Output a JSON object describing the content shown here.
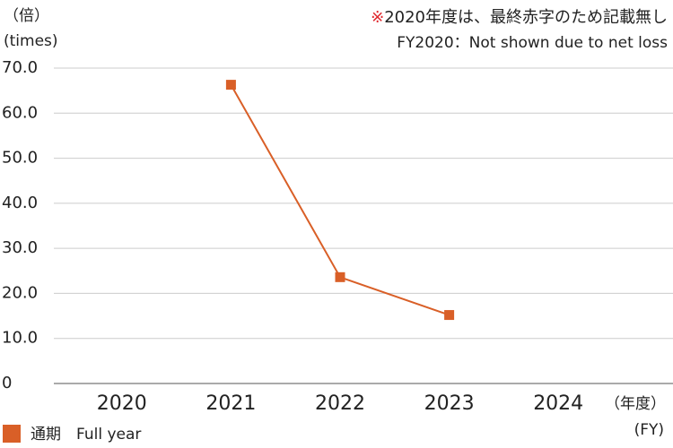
{
  "chart_data": {
    "type": "line",
    "y_unit_ja": "（倍）",
    "y_unit_en": "(times)",
    "note_mark": "※",
    "note_mark_color": "#e0282e",
    "note_ja": "2020年度は、最終赤字のため記載無し",
    "note_en": "FY2020：Not shown due to net loss",
    "x_unit_ja": "（年度）",
    "x_unit_en": "(FY)",
    "categories": [
      "2020",
      "2021",
      "2022",
      "2023",
      "2024"
    ],
    "series": [
      {
        "name": "通期　Full year",
        "color": "#d95f27",
        "values": [
          null,
          66.3,
          23.6,
          15.2,
          null
        ]
      }
    ],
    "ylim": [
      0,
      70
    ],
    "yticks": [
      0,
      {
        "value": 10,
        "label": "10.0"
      },
      {
        "value": 20,
        "label": "20.0"
      },
      {
        "value": 30,
        "label": "30.0"
      },
      {
        "value": 40,
        "label": "40.0"
      },
      {
        "value": 50,
        "label": "50.0"
      },
      {
        "value": 60,
        "label": "60.0"
      },
      {
        "value": 70,
        "label": "70.0"
      }
    ],
    "grid": true
  }
}
